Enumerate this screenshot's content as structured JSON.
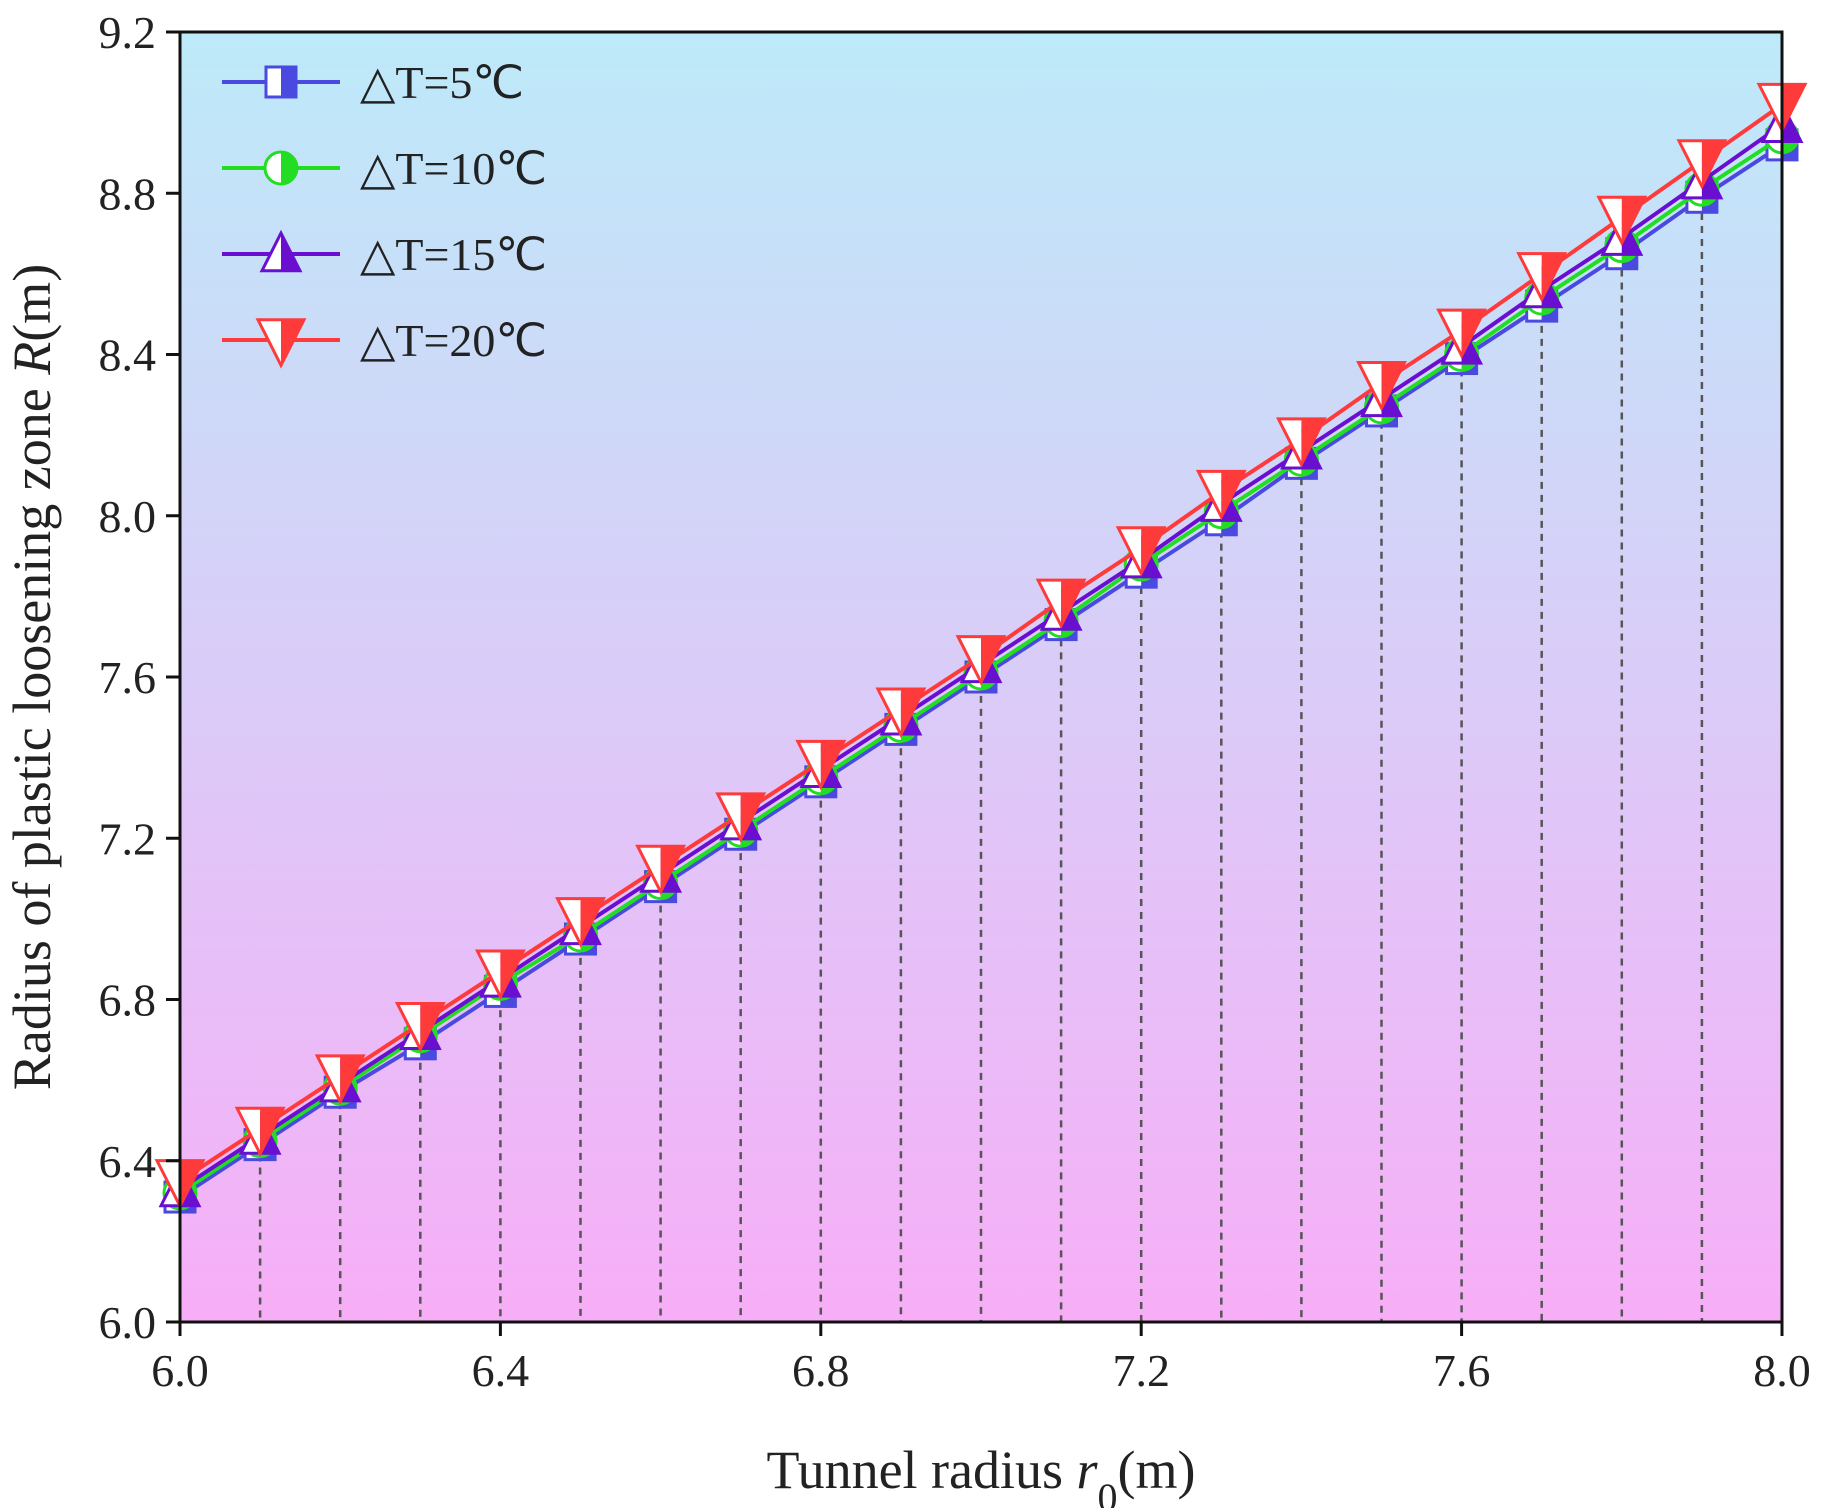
{
  "chart_data": {
    "type": "line",
    "xlabel": {
      "prefix": "Tunnel radius ",
      "var": "r",
      "sub": "0",
      "suffix": "(m)"
    },
    "ylabel": {
      "prefix": "Radius of plastic loosening zone ",
      "var": "R",
      "suffix": "(m)"
    },
    "xlim": [
      6.0,
      8.0
    ],
    "ylim": [
      6.0,
      9.2
    ],
    "x_ticks": [
      "6.0",
      "6.4",
      "6.8",
      "7.2",
      "7.6",
      "8.0"
    ],
    "y_ticks": [
      "6.0",
      "6.4",
      "6.8",
      "7.2",
      "7.6",
      "8.0",
      "8.4",
      "8.8",
      "9.2"
    ],
    "x": [
      6.0,
      6.1,
      6.2,
      6.3,
      6.4,
      6.5,
      6.6,
      6.7,
      6.8,
      6.9,
      7.0,
      7.1,
      7.2,
      7.3,
      7.4,
      7.5,
      7.6,
      7.7,
      7.8,
      7.9,
      8.0
    ],
    "series": [
      {
        "name": "△T=5℃",
        "marker": "square",
        "color": "#4a4ae0",
        "values": [
          6.31,
          6.44,
          6.57,
          6.69,
          6.82,
          6.95,
          7.08,
          7.21,
          7.34,
          7.47,
          7.6,
          7.73,
          7.86,
          7.99,
          8.13,
          8.26,
          8.39,
          8.52,
          8.65,
          8.79,
          8.92
        ]
      },
      {
        "name": "△T=10℃",
        "marker": "circle",
        "color": "#22dd22",
        "values": [
          6.32,
          6.45,
          6.58,
          6.71,
          6.84,
          6.96,
          7.09,
          7.22,
          7.35,
          7.48,
          7.61,
          7.74,
          7.88,
          8.01,
          8.14,
          8.27,
          8.4,
          8.54,
          8.67,
          8.81,
          8.94
        ]
      },
      {
        "name": "△T=15℃",
        "marker": "triangle-up",
        "color": "#6a0fd0",
        "values": [
          6.33,
          6.46,
          6.59,
          6.72,
          6.85,
          6.98,
          7.11,
          7.24,
          7.37,
          7.5,
          7.63,
          7.76,
          7.89,
          8.03,
          8.16,
          8.29,
          8.42,
          8.56,
          8.69,
          8.83,
          8.97
        ]
      },
      {
        "name": "△T=20℃",
        "marker": "triangle-down",
        "color": "#ff3a3a",
        "values": [
          6.35,
          6.48,
          6.61,
          6.74,
          6.87,
          7.0,
          7.13,
          7.26,
          7.39,
          7.52,
          7.65,
          7.79,
          7.92,
          8.06,
          8.19,
          8.33,
          8.46,
          8.6,
          8.74,
          8.88,
          9.02
        ]
      }
    ],
    "legend_position": "top-left",
    "background_gradient": [
      "#bdeaf9",
      "#f7aef7"
    ],
    "dropline_color": "#555555"
  }
}
